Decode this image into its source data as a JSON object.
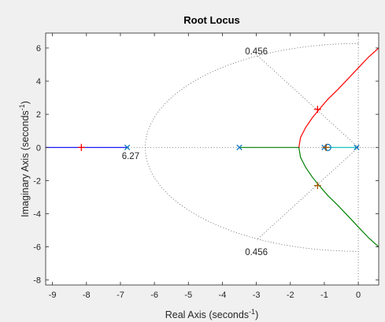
{
  "chart_data": {
    "type": "line",
    "title": "Root Locus",
    "xlabel": "Real Axis (seconds",
    "ylabel": "Imaginary Axis (seconds",
    "unit_exponent": "-1",
    "xlim": [
      -9.2,
      0.6
    ],
    "ylim": [
      -8.3,
      6.9
    ],
    "xticks": [
      "-9",
      "-8",
      "-7",
      "-6",
      "-5",
      "-4",
      "-3",
      "-2",
      "-1",
      "0"
    ],
    "yticks": [
      "-8",
      "-6",
      "-4",
      "-2",
      "0",
      "2",
      "4",
      "6"
    ],
    "colors": {
      "blue": "#0000ff",
      "green": "#008000",
      "red": "#ff0000",
      "cyan": "#00bfbf",
      "pole": "#0072bd",
      "zero": "#0072bd",
      "grid": "#555555"
    },
    "series": [
      {
        "color": "#0000ff",
        "x": [
          -9.2,
          -6.8
        ],
        "y": [
          0,
          0
        ]
      },
      {
        "color": "#008000",
        "x": [
          -3.5,
          -1.75
        ],
        "y": [
          0,
          0
        ]
      },
      {
        "color": "#00bfbf",
        "x": [
          -1.0,
          -0.05
        ],
        "y": [
          0,
          0
        ]
      },
      {
        "color": "#ff0000",
        "x": [
          -1.75,
          -1.7,
          -1.55,
          -1.35,
          -1.15,
          -0.9,
          -0.6,
          -0.3,
          0.0,
          0.3,
          0.6
        ],
        "y": [
          0,
          0.6,
          1.2,
          1.8,
          2.3,
          2.9,
          3.5,
          4.15,
          4.8,
          5.45,
          6.0
        ]
      },
      {
        "color": "#008000",
        "x": [
          -1.75,
          -1.7,
          -1.55,
          -1.35,
          -1.15,
          -0.9,
          -0.6,
          -0.3,
          0.0,
          0.3,
          0.6
        ],
        "y": [
          0,
          -0.6,
          -1.2,
          -1.8,
          -2.3,
          -2.9,
          -3.5,
          -4.15,
          -4.8,
          -5.45,
          -6.0
        ]
      }
    ],
    "poles": [
      [
        -6.8,
        0
      ],
      [
        -3.5,
        0
      ],
      [
        -1.0,
        0
      ],
      [
        -0.05,
        0
      ]
    ],
    "zeros": [
      [
        -0.9,
        0
      ]
    ],
    "closed_loop_poles": [
      {
        "x": -8.15,
        "y": 0,
        "color": "#ff0000"
      },
      {
        "x": -1.2,
        "y": 2.3,
        "color": "#ff0000"
      },
      {
        "x": -1.2,
        "y": -2.3,
        "color": "#aa5500"
      },
      {
        "x": -0.95,
        "y": 0,
        "color": "#aa5500"
      }
    ],
    "grid_annotations": [
      {
        "text": "0.456",
        "x": -3.0,
        "y": 5.8
      },
      {
        "text": "0.456",
        "x": -3.0,
        "y": -6.3
      },
      {
        "text": "6.27",
        "x": -6.7,
        "y": -0.5
      }
    ],
    "damping_ray_slope": 1.95,
    "wn_circle_radius": 6.27
  }
}
